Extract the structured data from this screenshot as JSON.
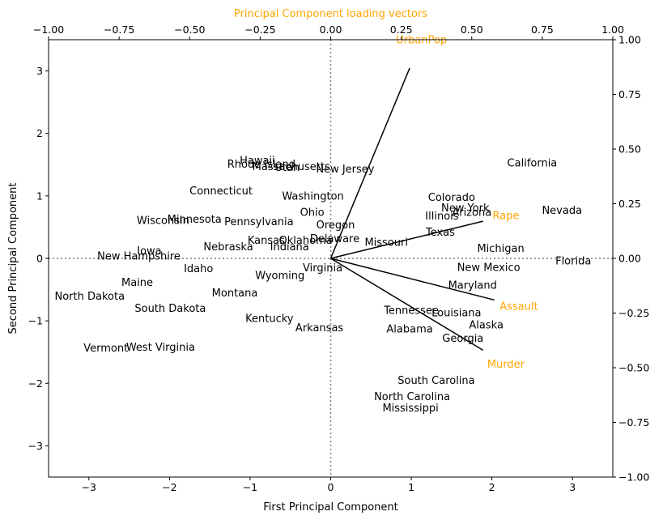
{
  "chart_data": {
    "type": "scatter",
    "subtype": "biplot",
    "title": "",
    "xlabel": "First Principal Component",
    "ylabel": "Second Principal Component",
    "top_axis_label": "Principal Component loading vectors",
    "xlim": [
      -3.5,
      3.5
    ],
    "ylim": [
      -3.5,
      3.5
    ],
    "x_ticks": [
      -3,
      -2,
      -1,
      0,
      1,
      2,
      3
    ],
    "y_ticks": [
      -3,
      -2,
      -1,
      0,
      1,
      2,
      3
    ],
    "top_ticks": [
      -1.0,
      -0.75,
      -0.5,
      -0.25,
      0.0,
      0.25,
      0.5,
      0.75,
      1.0
    ],
    "right_ticks": [
      -1.0,
      -0.75,
      -0.5,
      -0.25,
      0.0,
      0.25,
      0.5,
      0.75,
      1.0
    ],
    "secondary_lim": [
      -1,
      1
    ],
    "reference_lines": "dotted lines at x=0 and y=0",
    "loading_color": "#ffa500",
    "scores": [
      {
        "label": "Alabama",
        "x": 0.98,
        "y": -1.13
      },
      {
        "label": "Alaska",
        "x": 1.93,
        "y": -1.06
      },
      {
        "label": "Arizona",
        "x": 1.75,
        "y": 0.74
      },
      {
        "label": "Arkansas",
        "x": -0.14,
        "y": -1.11
      },
      {
        "label": "California",
        "x": 2.5,
        "y": 1.53
      },
      {
        "label": "Colorado",
        "x": 1.5,
        "y": 0.98
      },
      {
        "label": "Connecticut",
        "x": -1.36,
        "y": 1.08
      },
      {
        "label": "Delaware",
        "x": 0.05,
        "y": 0.32
      },
      {
        "label": "Florida",
        "x": 3.01,
        "y": -0.04
      },
      {
        "label": "Georgia",
        "x": 1.64,
        "y": -1.28
      },
      {
        "label": "Hawaii",
        "x": -0.91,
        "y": 1.57
      },
      {
        "label": "Idaho",
        "x": -1.64,
        "y": -0.16
      },
      {
        "label": "Illinois",
        "x": 1.38,
        "y": 0.68
      },
      {
        "label": "Indiana",
        "x": -0.51,
        "y": 0.19
      },
      {
        "label": "Iowa",
        "x": -2.25,
        "y": 0.12
      },
      {
        "label": "Kansas",
        "x": -0.8,
        "y": 0.29
      },
      {
        "label": "Kentucky",
        "x": -0.76,
        "y": -0.96
      },
      {
        "label": "Louisiana",
        "x": 1.56,
        "y": -0.87
      },
      {
        "label": "Maine",
        "x": -2.4,
        "y": -0.38
      },
      {
        "label": "Maryland",
        "x": 1.76,
        "y": -0.43
      },
      {
        "label": "Massachusetts",
        "x": -0.49,
        "y": 1.47
      },
      {
        "label": "Michigan",
        "x": 2.11,
        "y": 0.16
      },
      {
        "label": "Minnesota",
        "x": -1.69,
        "y": 0.63
      },
      {
        "label": "Mississippi",
        "x": 0.99,
        "y": -2.39
      },
      {
        "label": "Missouri",
        "x": 0.69,
        "y": 0.26
      },
      {
        "label": "Montana",
        "x": -1.19,
        "y": -0.55
      },
      {
        "label": "Nebraska",
        "x": -1.27,
        "y": 0.19
      },
      {
        "label": "Nevada",
        "x": 2.87,
        "y": 0.77
      },
      {
        "label": "New Hampshire",
        "x": -2.38,
        "y": 0.04
      },
      {
        "label": "New Jersey",
        "x": 0.18,
        "y": 1.43
      },
      {
        "label": "New Mexico",
        "x": 1.96,
        "y": -0.14
      },
      {
        "label": "New York",
        "x": 1.67,
        "y": 0.81
      },
      {
        "label": "North Carolina",
        "x": 1.01,
        "y": -2.21
      },
      {
        "label": "North Dakota",
        "x": -2.99,
        "y": -0.6
      },
      {
        "label": "Ohio",
        "x": -0.23,
        "y": 0.74
      },
      {
        "label": "Oklahoma",
        "x": -0.31,
        "y": 0.29
      },
      {
        "label": "Oregon",
        "x": 0.06,
        "y": 0.54
      },
      {
        "label": "Pennsylvania",
        "x": -0.89,
        "y": 0.59
      },
      {
        "label": "Rhode Island",
        "x": -0.86,
        "y": 1.51
      },
      {
        "label": "South Carolina",
        "x": 1.31,
        "y": -1.95
      },
      {
        "label": "South Dakota",
        "x": -1.99,
        "y": -0.8
      },
      {
        "label": "Tennessee",
        "x": 1.0,
        "y": -0.83
      },
      {
        "label": "Texas",
        "x": 1.36,
        "y": 0.42
      },
      {
        "label": "Utah",
        "x": -0.54,
        "y": 1.46
      },
      {
        "label": "Vermont",
        "x": -2.79,
        "y": -1.43
      },
      {
        "label": "Virginia",
        "x": -0.1,
        "y": -0.15
      },
      {
        "label": "Washington",
        "x": -0.22,
        "y": 1.0
      },
      {
        "label": "West Virginia",
        "x": -2.11,
        "y": -1.42
      },
      {
        "label": "Wisconsin",
        "x": -2.08,
        "y": 0.61
      },
      {
        "label": "Wyoming",
        "x": -0.63,
        "y": -0.27
      }
    ],
    "loadings": [
      {
        "label": "Murder",
        "x": 0.54,
        "y": -0.42
      },
      {
        "label": "Assault",
        "x": 0.58,
        "y": -0.19
      },
      {
        "label": "UrbanPop",
        "x": 0.28,
        "y": 0.87
      },
      {
        "label": "Rape",
        "x": 0.54,
        "y": 0.17
      }
    ]
  }
}
